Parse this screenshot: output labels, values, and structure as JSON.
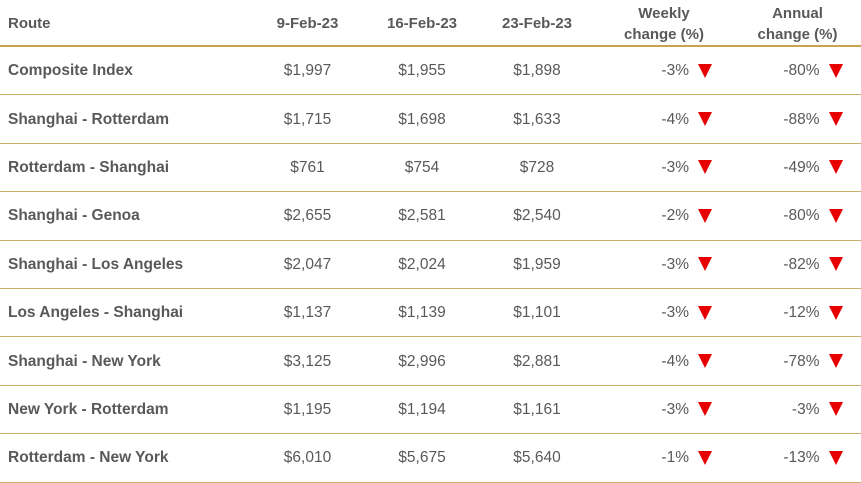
{
  "header": {
    "route": "Route",
    "date1": "9-Feb-23",
    "date2": "16-Feb-23",
    "date3": "23-Feb-23",
    "weekly_line1": "Weekly",
    "weekly_line2": "change (%)",
    "annual_line1": "Annual",
    "annual_line2": "change (%)"
  },
  "colors": {
    "down_arrow": "#e60000",
    "rule": "#c9a44a",
    "text": "#595959"
  },
  "rows": [
    {
      "route": "Composite Index",
      "d1": "$1,997",
      "d2": "$1,955",
      "d3": "$1,898",
      "weekly": "-3%",
      "annual": "-80%"
    },
    {
      "route": "Shanghai - Rotterdam",
      "d1": "$1,715",
      "d2": "$1,698",
      "d3": "$1,633",
      "weekly": "-4%",
      "annual": "-88%"
    },
    {
      "route": "Rotterdam - Shanghai",
      "d1": "$761",
      "d2": "$754",
      "d3": "$728",
      "weekly": "-3%",
      "annual": "-49%"
    },
    {
      "route": "Shanghai - Genoa",
      "d1": "$2,655",
      "d2": "$2,581",
      "d3": "$2,540",
      "weekly": "-2%",
      "annual": "-80%"
    },
    {
      "route": "Shanghai - Los Angeles",
      "d1": "$2,047",
      "d2": "$2,024",
      "d3": "$1,959",
      "weekly": "-3%",
      "annual": "-82%"
    },
    {
      "route": "Los Angeles - Shanghai",
      "d1": "$1,137",
      "d2": "$1,139",
      "d3": "$1,101",
      "weekly": "-3%",
      "annual": "-12%"
    },
    {
      "route": "Shanghai - New York",
      "d1": "$3,125",
      "d2": "$2,996",
      "d3": "$2,881",
      "weekly": "-4%",
      "annual": "-78%"
    },
    {
      "route": "New York - Rotterdam",
      "d1": "$1,195",
      "d2": "$1,194",
      "d3": "$1,161",
      "weekly": "-3%",
      "annual": "-3%"
    },
    {
      "route": "Rotterdam - New York",
      "d1": "$6,010",
      "d2": "$5,675",
      "d3": "$5,640",
      "weekly": "-1%",
      "annual": "-13%"
    }
  ]
}
